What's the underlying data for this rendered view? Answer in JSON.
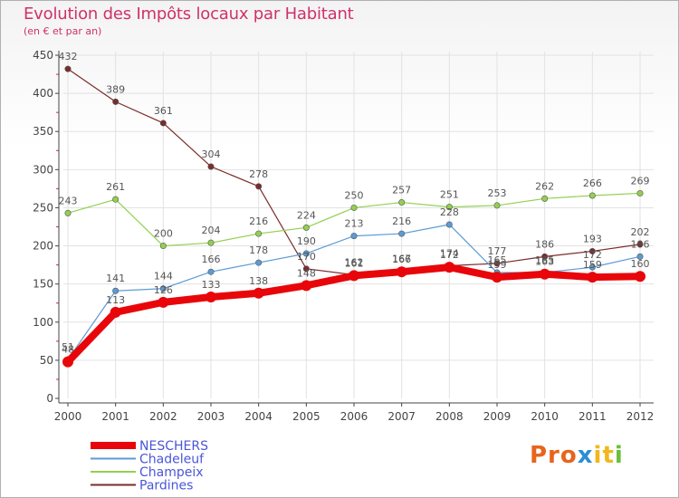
{
  "header": {
    "title": "Evolution des Impôts locaux par Habitant",
    "subtitle": "(en € et par an)"
  },
  "logo": {
    "part1": "Pro",
    "part2": "x",
    "part3": "it",
    "part4": "i"
  },
  "chart_data": {
    "type": "line",
    "title": "Evolution des Impôts locaux par Habitant",
    "subtitle": "(en € et par an)",
    "xlabel": "",
    "ylabel": "",
    "ylim": [
      0,
      450
    ],
    "yticks": [
      0,
      50,
      100,
      150,
      200,
      250,
      300,
      350,
      400,
      450
    ],
    "categories": [
      "2000",
      "2001",
      "2002",
      "2003",
      "2004",
      "2005",
      "2006",
      "2007",
      "2008",
      "2009",
      "2010",
      "2011",
      "2012"
    ],
    "legend_position": "bottom-left",
    "series": [
      {
        "name": "NESCHERS",
        "color": "#e8060a",
        "values": [
          48,
          113,
          126,
          133,
          138,
          148,
          161,
          166,
          172,
          159,
          163,
          159,
          160
        ]
      },
      {
        "name": "Chadeleuf",
        "color": "#5b9bd5",
        "values": [
          51,
          141,
          144,
          166,
          178,
          190,
          213,
          216,
          228,
          165,
          165,
          172,
          186
        ]
      },
      {
        "name": "Champeix",
        "color": "#92d050",
        "values": [
          243,
          261,
          200,
          204,
          216,
          224,
          250,
          257,
          251,
          253,
          262,
          266,
          269
        ]
      },
      {
        "name": "Pardines",
        "color": "#7b2c2c",
        "values": [
          432,
          389,
          361,
          304,
          278,
          170,
          162,
          167,
          174,
          177,
          186,
          193,
          202
        ]
      }
    ]
  }
}
